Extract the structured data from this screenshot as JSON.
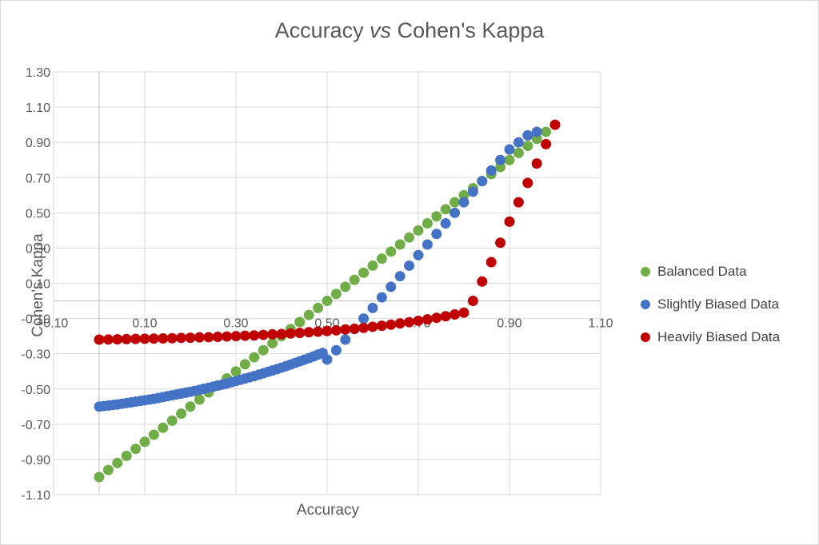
{
  "chart_data": {
    "type": "scatter",
    "title_parts": [
      "Accuracy ",
      "vs",
      " Cohen's Kappa"
    ],
    "xlabel": "Accuracy",
    "ylabel": "Cohen's Kappa",
    "xlim": [
      -0.1,
      1.1
    ],
    "ylim": [
      -1.1,
      1.3
    ],
    "x_ticks": [
      "-0.10",
      "0.10",
      "0.30",
      "0.50",
      "0.70",
      "0.90",
      "1.10"
    ],
    "y_ticks": [
      "1.30",
      "1.10",
      "0.90",
      "0.70",
      "0.50",
      "0.30",
      "0.10",
      "-0.10",
      "-0.30",
      "-0.50",
      "-0.70",
      "-0.90",
      "-1.10"
    ],
    "grid": true,
    "legend_position": "right",
    "series": [
      {
        "name": "Balanced Data",
        "color": "#70ad47",
        "points": [
          [
            0,
            -1.0
          ],
          [
            0.02,
            -0.96
          ],
          [
            0.04,
            -0.92
          ],
          [
            0.06,
            -0.88
          ],
          [
            0.08,
            -0.84
          ],
          [
            0.1,
            -0.8
          ],
          [
            0.12,
            -0.76
          ],
          [
            0.14,
            -0.72
          ],
          [
            0.16,
            -0.68
          ],
          [
            0.18,
            -0.64
          ],
          [
            0.2,
            -0.6
          ],
          [
            0.22,
            -0.56
          ],
          [
            0.24,
            -0.52
          ],
          [
            0.26,
            -0.48
          ],
          [
            0.28,
            -0.44
          ],
          [
            0.3,
            -0.4
          ],
          [
            0.32,
            -0.36
          ],
          [
            0.34,
            -0.32
          ],
          [
            0.36,
            -0.28
          ],
          [
            0.38,
            -0.24
          ],
          [
            0.4,
            -0.2
          ],
          [
            0.42,
            -0.16
          ],
          [
            0.44,
            -0.12
          ],
          [
            0.46,
            -0.08
          ],
          [
            0.48,
            -0.04
          ],
          [
            0.5,
            0.0
          ],
          [
            0.52,
            0.04
          ],
          [
            0.54,
            0.08
          ],
          [
            0.56,
            0.12
          ],
          [
            0.58,
            0.16
          ],
          [
            0.6,
            0.2
          ],
          [
            0.62,
            0.24
          ],
          [
            0.64,
            0.28
          ],
          [
            0.66,
            0.32
          ],
          [
            0.68,
            0.36
          ],
          [
            0.7,
            0.4
          ],
          [
            0.72,
            0.44
          ],
          [
            0.74,
            0.48
          ],
          [
            0.76,
            0.52
          ],
          [
            0.78,
            0.56
          ],
          [
            0.8,
            0.6
          ],
          [
            0.82,
            0.64
          ],
          [
            0.84,
            0.68
          ],
          [
            0.86,
            0.72
          ],
          [
            0.88,
            0.76
          ],
          [
            0.9,
            0.8
          ],
          [
            0.92,
            0.84
          ],
          [
            0.94,
            0.88
          ],
          [
            0.96,
            0.92
          ],
          [
            0.98,
            0.96
          ]
        ]
      },
      {
        "name": "Slightly Biased Data",
        "color": "#4472c4",
        "points": [
          [
            0,
            -0.6
          ],
          [
            0.01,
            -0.597
          ],
          [
            0.02,
            -0.594
          ],
          [
            0.03,
            -0.591
          ],
          [
            0.04,
            -0.588
          ],
          [
            0.05,
            -0.584
          ],
          [
            0.06,
            -0.58
          ],
          [
            0.07,
            -0.576
          ],
          [
            0.08,
            -0.572
          ],
          [
            0.09,
            -0.568
          ],
          [
            0.1,
            -0.564
          ],
          [
            0.11,
            -0.56
          ],
          [
            0.12,
            -0.556
          ],
          [
            0.13,
            -0.551
          ],
          [
            0.14,
            -0.546
          ],
          [
            0.15,
            -0.541
          ],
          [
            0.16,
            -0.536
          ],
          [
            0.17,
            -0.531
          ],
          [
            0.18,
            -0.526
          ],
          [
            0.19,
            -0.521
          ],
          [
            0.2,
            -0.516
          ],
          [
            0.21,
            -0.511
          ],
          [
            0.22,
            -0.505
          ],
          [
            0.23,
            -0.499
          ],
          [
            0.24,
            -0.493
          ],
          [
            0.25,
            -0.487
          ],
          [
            0.26,
            -0.481
          ],
          [
            0.27,
            -0.475
          ],
          [
            0.28,
            -0.469
          ],
          [
            0.29,
            -0.462
          ],
          [
            0.3,
            -0.455
          ],
          [
            0.31,
            -0.448
          ],
          [
            0.32,
            -0.441
          ],
          [
            0.33,
            -0.434
          ],
          [
            0.34,
            -0.427
          ],
          [
            0.35,
            -0.419
          ],
          [
            0.36,
            -0.411
          ],
          [
            0.37,
            -0.403
          ],
          [
            0.38,
            -0.395
          ],
          [
            0.39,
            -0.387
          ],
          [
            0.4,
            -0.379
          ],
          [
            0.41,
            -0.37
          ],
          [
            0.42,
            -0.361
          ],
          [
            0.43,
            -0.352
          ],
          [
            0.44,
            -0.343
          ],
          [
            0.45,
            -0.334
          ],
          [
            0.46,
            -0.325
          ],
          [
            0.47,
            -0.315
          ],
          [
            0.48,
            -0.305
          ],
          [
            0.49,
            -0.295
          ],
          [
            0.5,
            -0.333
          ],
          [
            0.52,
            -0.28
          ],
          [
            0.54,
            -0.22
          ],
          [
            0.56,
            -0.16
          ],
          [
            0.58,
            -0.1
          ],
          [
            0.6,
            -0.04
          ],
          [
            0.62,
            0.02
          ],
          [
            0.64,
            0.08
          ],
          [
            0.66,
            0.14
          ],
          [
            0.68,
            0.2
          ],
          [
            0.7,
            0.26
          ],
          [
            0.72,
            0.32
          ],
          [
            0.74,
            0.38
          ],
          [
            0.76,
            0.44
          ],
          [
            0.78,
            0.5
          ],
          [
            0.8,
            0.56
          ],
          [
            0.82,
            0.62
          ],
          [
            0.84,
            0.68
          ],
          [
            0.86,
            0.74
          ],
          [
            0.88,
            0.8
          ],
          [
            0.9,
            0.86
          ],
          [
            0.92,
            0.9
          ],
          [
            0.94,
            0.94
          ],
          [
            0.96,
            0.96
          ]
        ]
      },
      {
        "name": "Heavily Biased Data",
        "color": "#c00000",
        "points": [
          [
            0,
            -0.22
          ],
          [
            0.02,
            -0.219
          ],
          [
            0.04,
            -0.218
          ],
          [
            0.06,
            -0.217
          ],
          [
            0.08,
            -0.216
          ],
          [
            0.1,
            -0.215
          ],
          [
            0.12,
            -0.214
          ],
          [
            0.14,
            -0.213
          ],
          [
            0.16,
            -0.212
          ],
          [
            0.18,
            -0.21
          ],
          [
            0.2,
            -0.209
          ],
          [
            0.22,
            -0.207
          ],
          [
            0.24,
            -0.206
          ],
          [
            0.26,
            -0.204
          ],
          [
            0.28,
            -0.202
          ],
          [
            0.3,
            -0.2
          ],
          [
            0.32,
            -0.198
          ],
          [
            0.34,
            -0.196
          ],
          [
            0.36,
            -0.193
          ],
          [
            0.38,
            -0.19
          ],
          [
            0.4,
            -0.188
          ],
          [
            0.42,
            -0.185
          ],
          [
            0.44,
            -0.182
          ],
          [
            0.46,
            -0.178
          ],
          [
            0.48,
            -0.175
          ],
          [
            0.5,
            -0.171
          ],
          [
            0.52,
            -0.167
          ],
          [
            0.54,
            -0.162
          ],
          [
            0.56,
            -0.158
          ],
          [
            0.58,
            -0.153
          ],
          [
            0.6,
            -0.147
          ],
          [
            0.62,
            -0.141
          ],
          [
            0.64,
            -0.135
          ],
          [
            0.66,
            -0.128
          ],
          [
            0.68,
            -0.121
          ],
          [
            0.7,
            -0.113
          ],
          [
            0.72,
            -0.105
          ],
          [
            0.74,
            -0.096
          ],
          [
            0.76,
            -0.087
          ],
          [
            0.78,
            -0.077
          ],
          [
            0.8,
            -0.067
          ],
          [
            0.82,
            0.0
          ],
          [
            0.84,
            0.11
          ],
          [
            0.86,
            0.22
          ],
          [
            0.88,
            0.33
          ],
          [
            0.9,
            0.45
          ],
          [
            0.92,
            0.56
          ],
          [
            0.94,
            0.67
          ],
          [
            0.96,
            0.78
          ],
          [
            0.98,
            0.89
          ],
          [
            1.0,
            1.0
          ]
        ]
      }
    ]
  }
}
